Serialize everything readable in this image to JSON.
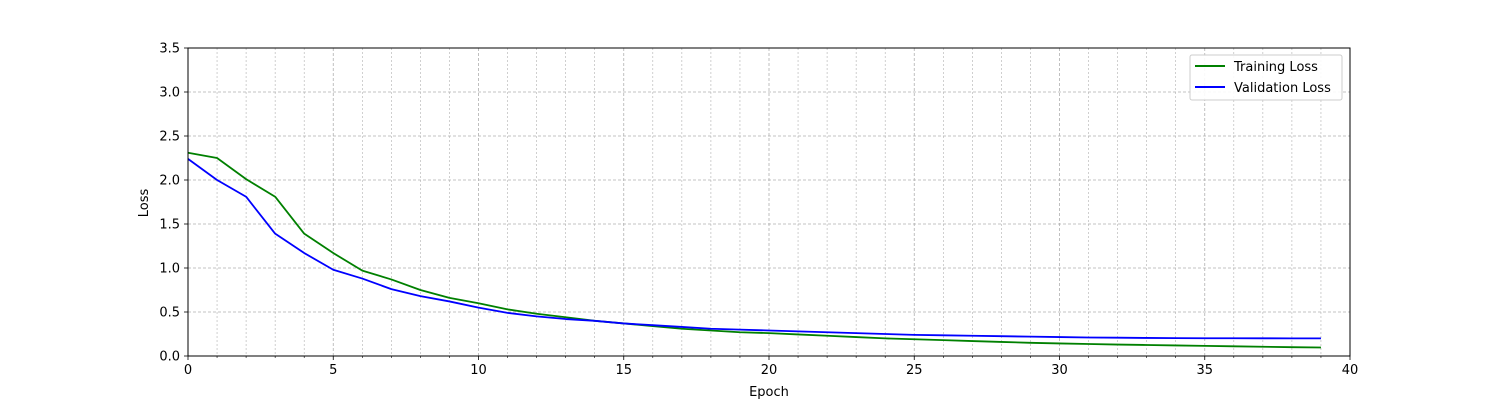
{
  "chart_data": {
    "type": "line",
    "title": "",
    "xlabel": "Epoch",
    "ylabel": "Loss",
    "xlim": [
      0,
      40
    ],
    "ylim": [
      0,
      3.5
    ],
    "x_ticks": [
      0,
      5,
      10,
      15,
      20,
      25,
      30,
      35,
      40
    ],
    "x_tick_labels": [
      "0",
      "5",
      "10",
      "15",
      "20",
      "25",
      "30",
      "35",
      "40"
    ],
    "y_ticks": [
      0,
      0.5,
      1.0,
      1.5,
      2.0,
      2.5,
      3.0,
      3.5
    ],
    "y_tick_labels": [
      "0.0",
      "0.5",
      "1.0",
      "1.5",
      "2.0",
      "2.5",
      "3.0",
      "3.5"
    ],
    "x_minor_step": 1,
    "grid": true,
    "grid_minor": true,
    "legend_position": "top-right",
    "x": [
      0,
      1,
      2,
      3,
      4,
      5,
      6,
      7,
      8,
      9,
      10,
      11,
      12,
      13,
      14,
      15,
      16,
      17,
      18,
      19,
      20,
      21,
      22,
      23,
      24,
      25,
      26,
      27,
      28,
      29,
      30,
      31,
      32,
      33,
      34,
      35,
      36,
      37,
      38,
      39
    ],
    "series": [
      {
        "name": "Training Loss",
        "color": "#008000",
        "values": [
          2.31,
          2.25,
          2.01,
          1.81,
          1.39,
          1.17,
          0.97,
          0.87,
          0.75,
          0.66,
          0.6,
          0.53,
          0.48,
          0.44,
          0.4,
          0.37,
          0.34,
          0.31,
          0.29,
          0.27,
          0.26,
          0.245,
          0.23,
          0.215,
          0.2,
          0.19,
          0.18,
          0.17,
          0.16,
          0.15,
          0.143,
          0.136,
          0.13,
          0.125,
          0.12,
          0.115,
          0.11,
          0.105,
          0.1,
          0.097
        ]
      },
      {
        "name": "Validation Loss",
        "color": "#0000ff",
        "values": [
          2.24,
          2.0,
          1.81,
          1.39,
          1.17,
          0.98,
          0.88,
          0.76,
          0.68,
          0.62,
          0.55,
          0.49,
          0.45,
          0.42,
          0.4,
          0.37,
          0.35,
          0.33,
          0.31,
          0.3,
          0.29,
          0.28,
          0.27,
          0.26,
          0.25,
          0.24,
          0.235,
          0.23,
          0.225,
          0.22,
          0.215,
          0.21,
          0.208,
          0.205,
          0.203,
          0.202,
          0.202,
          0.201,
          0.2,
          0.2
        ]
      }
    ]
  }
}
